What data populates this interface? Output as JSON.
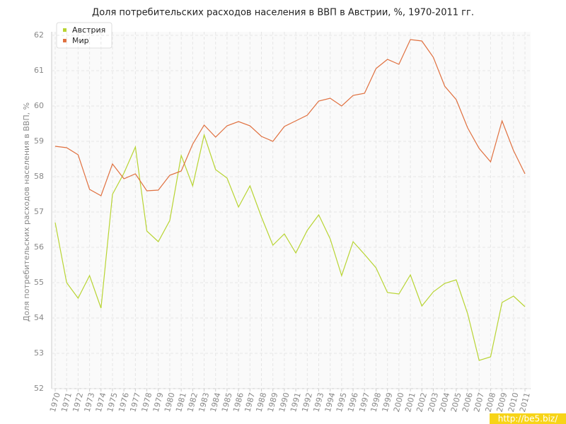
{
  "chart_data": {
    "type": "line",
    "title": "Доля потребительских расходов населения в ВВП в Австрии, %, 1970-2011 гг.",
    "y_label": "Доля потребительских расходов населения в ВВП, %",
    "watermark": "http://be5.biz/",
    "x": [
      1970,
      1971,
      1972,
      1973,
      1974,
      1975,
      1976,
      1977,
      1978,
      1979,
      1980,
      1981,
      1982,
      1983,
      1984,
      1985,
      1986,
      1987,
      1988,
      1989,
      1990,
      1991,
      1992,
      1993,
      1994,
      1995,
      1996,
      1997,
      1998,
      1999,
      2000,
      2001,
      2002,
      2003,
      2004,
      2005,
      2006,
      2007,
      2008,
      2009,
      2010,
      2011
    ],
    "xlim": [
      1970,
      2011
    ],
    "ylim": [
      52,
      62
    ],
    "yticks": [
      52,
      53,
      54,
      55,
      56,
      57,
      58,
      59,
      60,
      61,
      62
    ],
    "grid": true,
    "legend": "top-left",
    "series": [
      {
        "name": "Австрия",
        "color": "#b8d432",
        "values": [
          56.7,
          55.0,
          54.56,
          55.2,
          54.28,
          57.5,
          58.1,
          58.84,
          56.46,
          56.16,
          56.76,
          58.6,
          57.74,
          59.18,
          58.2,
          57.96,
          57.14,
          57.74,
          56.86,
          56.06,
          56.38,
          55.84,
          56.48,
          56.92,
          56.24,
          55.2,
          56.16,
          55.8,
          55.42,
          54.72,
          54.68,
          55.22,
          54.34,
          54.74,
          54.98,
          55.08,
          54.12,
          52.8,
          52.9,
          54.44,
          54.62,
          54.32
        ]
      },
      {
        "name": "Мир",
        "color": "#e0703f",
        "values": [
          58.86,
          58.82,
          58.62,
          57.64,
          57.46,
          58.36,
          57.94,
          58.08,
          57.6,
          57.62,
          58.04,
          58.16,
          58.92,
          59.46,
          59.12,
          59.44,
          59.56,
          59.44,
          59.14,
          59.0,
          59.42,
          59.58,
          59.74,
          60.14,
          60.22,
          60.0,
          60.3,
          60.36,
          61.06,
          61.32,
          61.18,
          61.88,
          61.84,
          61.38,
          60.56,
          60.18,
          59.38,
          58.8,
          58.42,
          59.58,
          58.74,
          58.08
        ]
      }
    ]
  }
}
